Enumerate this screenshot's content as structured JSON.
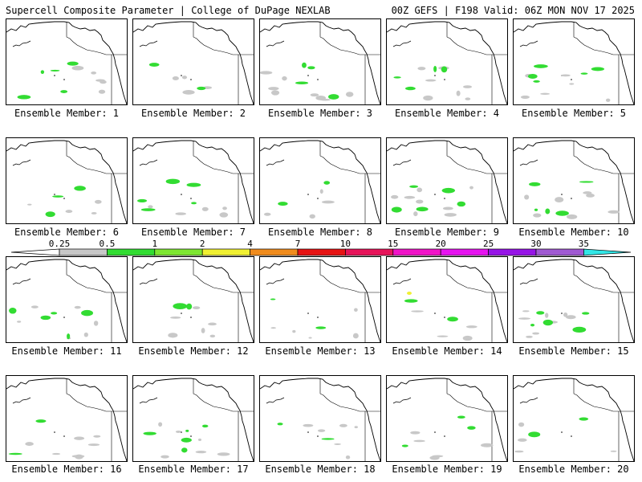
{
  "header": {
    "left_title": "Supercell Composite Parameter | College of DuPage NEXLAB",
    "right_title": "00Z GEFS | F198 Valid: 06Z MON NOV 17 2025"
  },
  "map_region": "North Pacific Ocean and western North America",
  "caption_prefix": "Ensemble Member:",
  "members": [
    {
      "number": "1",
      "label": "Ensemble Member: 1"
    },
    {
      "number": "2",
      "label": "Ensemble Member: 2"
    },
    {
      "number": "3",
      "label": "Ensemble Member: 3"
    },
    {
      "number": "4",
      "label": "Ensemble Member: 4"
    },
    {
      "number": "5",
      "label": "Ensemble Member: 5"
    },
    {
      "number": "6",
      "label": "Ensemble Member: 6"
    },
    {
      "number": "7",
      "label": "Ensemble Member: 7"
    },
    {
      "number": "8",
      "label": "Ensemble Member: 8"
    },
    {
      "number": "9",
      "label": "Ensemble Member: 9"
    },
    {
      "number": "10",
      "label": "Ensemble Member: 10"
    },
    {
      "number": "11",
      "label": "Ensemble Member: 11"
    },
    {
      "number": "12",
      "label": "Ensemble Member: 12"
    },
    {
      "number": "13",
      "label": "Ensemble Member: 13"
    },
    {
      "number": "14",
      "label": "Ensemble Member: 14"
    },
    {
      "number": "15",
      "label": "Ensemble Member: 15"
    },
    {
      "number": "16",
      "label": "Ensemble Member: 16"
    },
    {
      "number": "17",
      "label": "Ensemble Member: 17"
    },
    {
      "number": "18",
      "label": "Ensemble Member: 18"
    },
    {
      "number": "19",
      "label": "Ensemble Member: 19"
    },
    {
      "number": "20",
      "label": "Ensemble Member: 20"
    }
  ],
  "colorbar": {
    "levels": [
      {
        "value": "0.25",
        "color": "#c8c8c8"
      },
      {
        "value": "0.5",
        "color": "#32dc32"
      },
      {
        "value": "1",
        "color": "#7ee632"
      },
      {
        "value": "2",
        "color": "#f0f032"
      },
      {
        "value": "4",
        "color": "#f08c1e"
      },
      {
        "value": "7",
        "color": "#e61414"
      },
      {
        "value": "10",
        "color": "#e6145a"
      },
      {
        "value": "15",
        "color": "#f014c8"
      },
      {
        "value": "20",
        "color": "#e614f0"
      },
      {
        "value": "25",
        "color": "#9614e6"
      },
      {
        "value": "30",
        "color": "#a05ad2"
      },
      {
        "value": "35",
        "color": "#32e6e6"
      }
    ],
    "below_min_color": "#ffffff"
  }
}
